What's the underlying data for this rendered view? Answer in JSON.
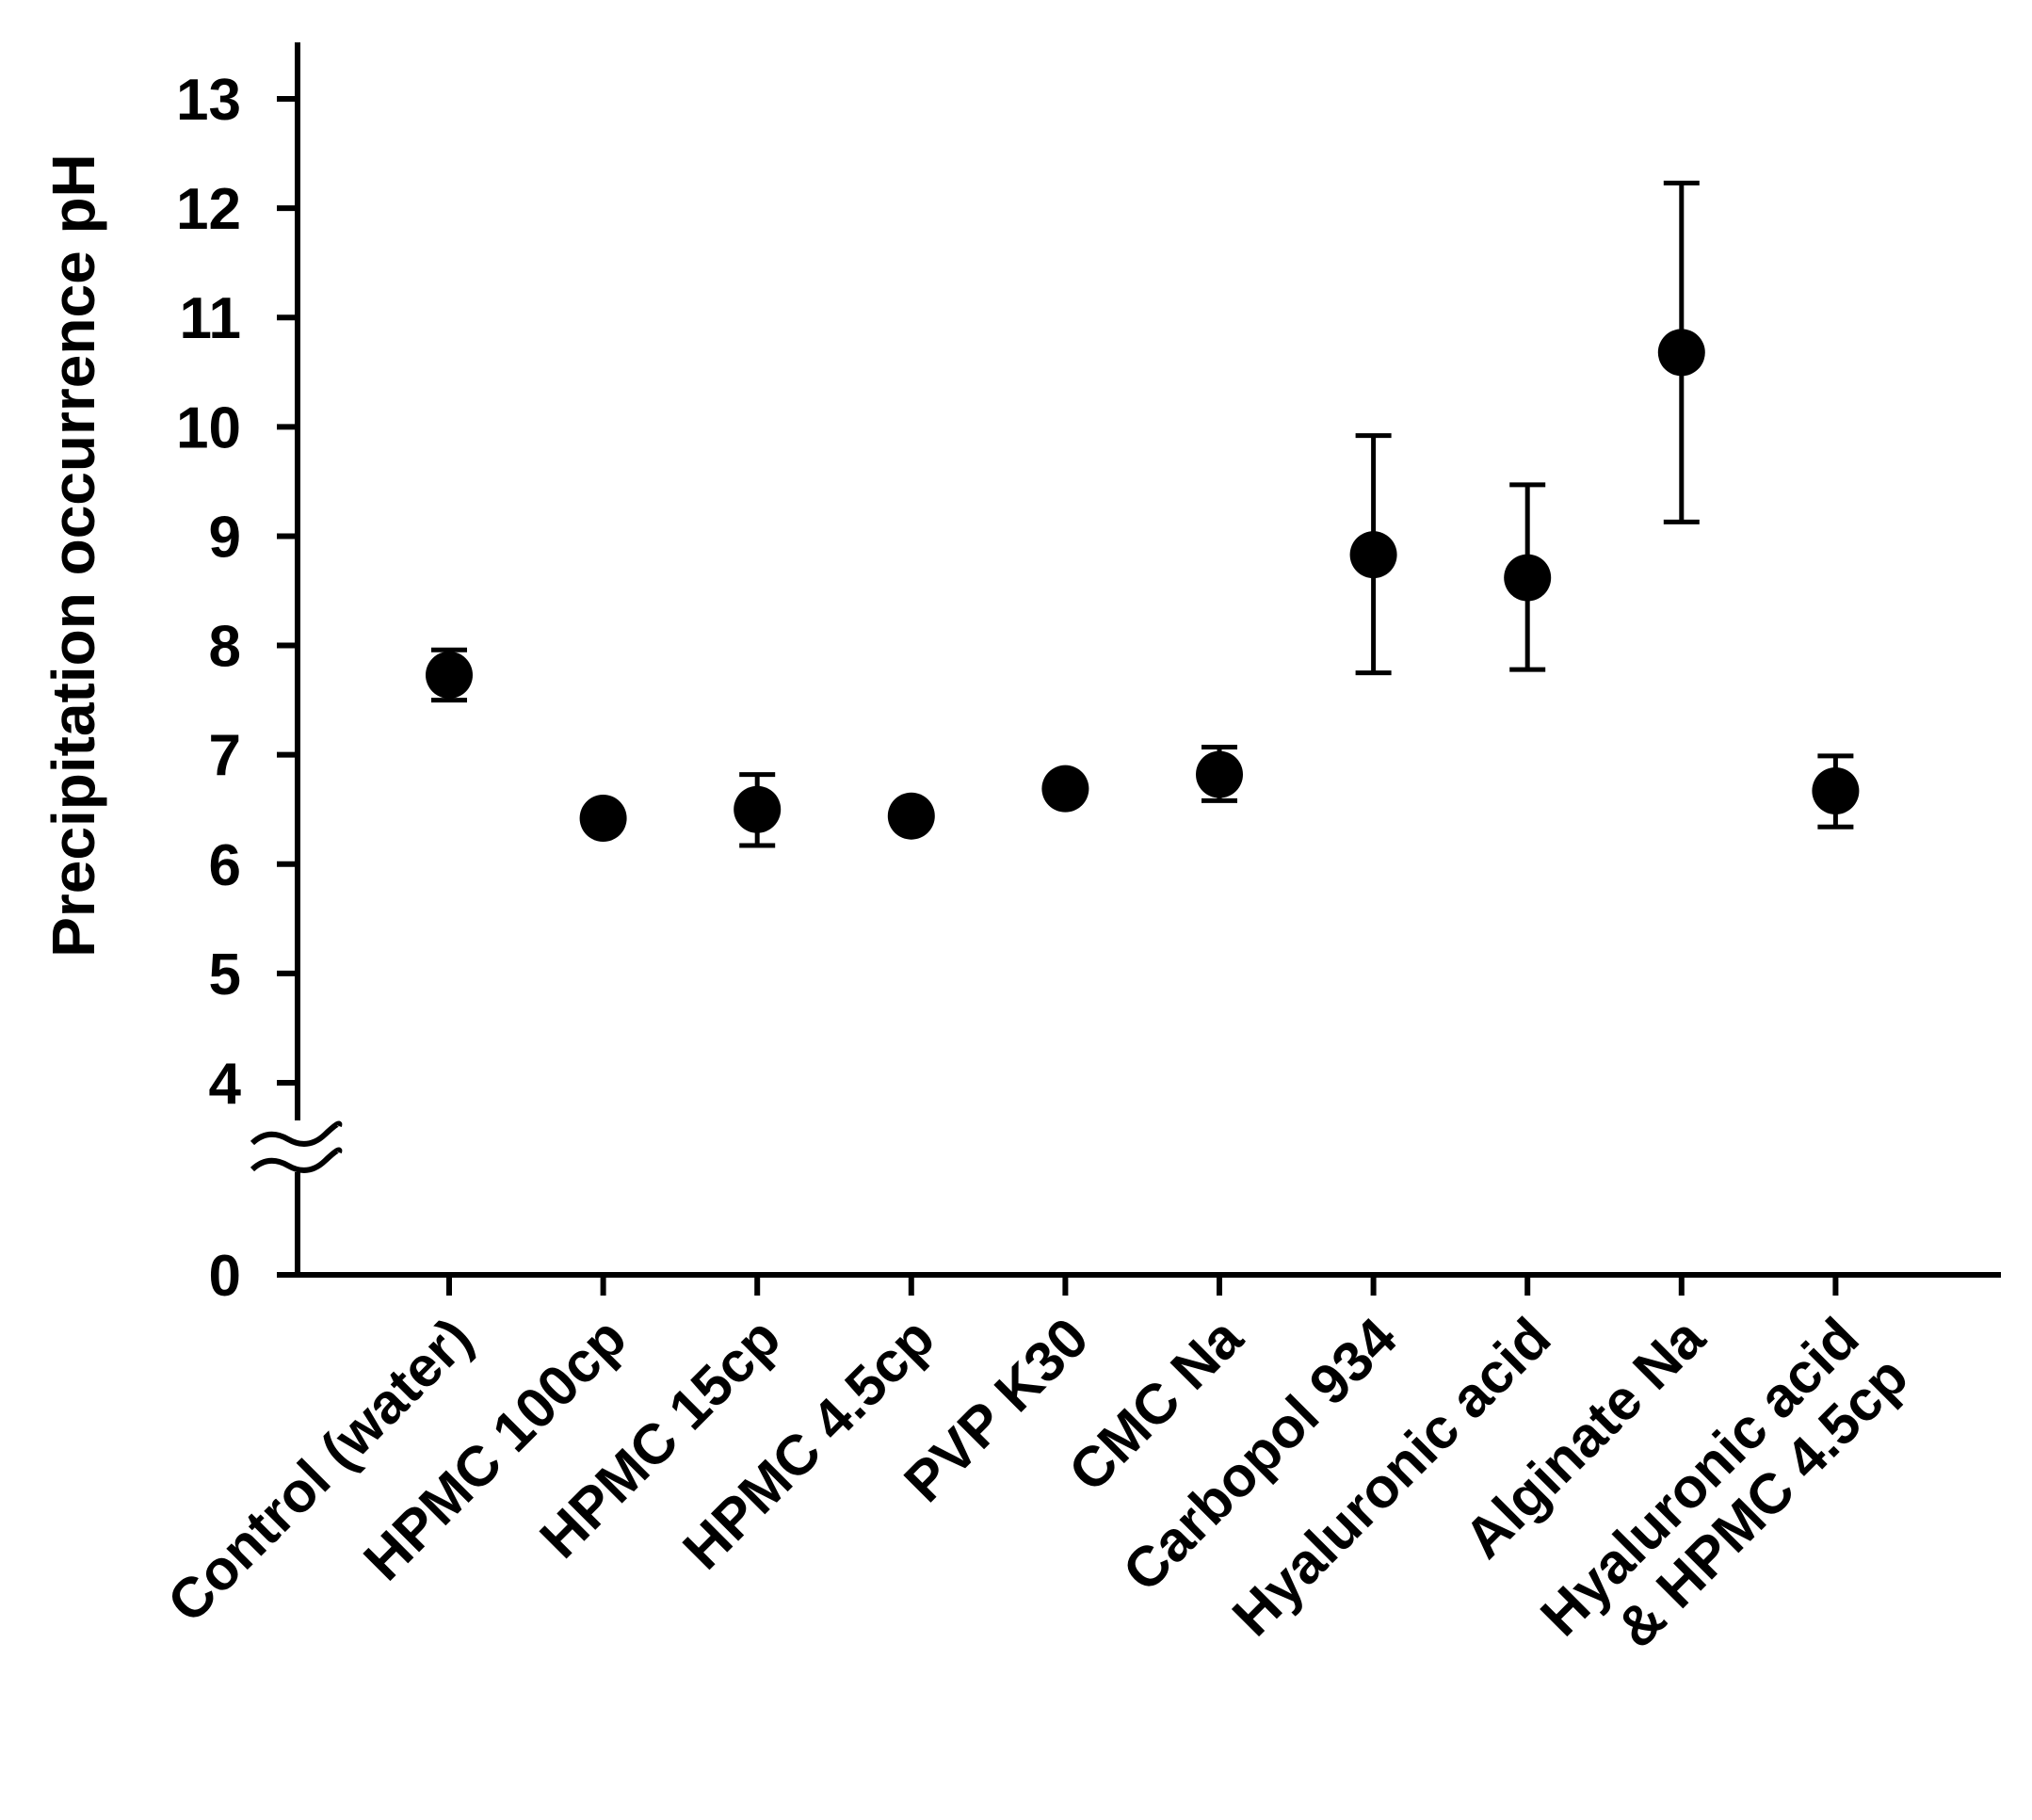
{
  "chart_data": {
    "type": "scatter",
    "title": "",
    "xlabel": "",
    "ylabel": "Precipitation occurrence pH",
    "ylim": [
      0,
      13
    ],
    "axis_break": true,
    "y_ticks": [
      {
        "value": 0,
        "label": "0"
      },
      {
        "value": 4,
        "label": "4"
      },
      {
        "value": 5,
        "label": "5"
      },
      {
        "value": 6,
        "label": "6"
      },
      {
        "value": 7,
        "label": "7"
      },
      {
        "value": 8,
        "label": "8"
      },
      {
        "value": 9,
        "label": "9"
      },
      {
        "value": 10,
        "label": "10"
      },
      {
        "value": 11,
        "label": "11"
      },
      {
        "value": 12,
        "label": "12"
      },
      {
        "value": 13,
        "label": "13"
      }
    ],
    "categories": [
      {
        "label": [
          "Control (water)"
        ],
        "value": 7.73,
        "err_low": 7.5,
        "err_high": 7.96
      },
      {
        "label": [
          "HPMC 100cp"
        ],
        "value": 6.42,
        "err_low": 6.36,
        "err_high": 6.48
      },
      {
        "label": [
          "HPMC 15cp"
        ],
        "value": 6.5,
        "err_low": 6.17,
        "err_high": 6.82
      },
      {
        "label": [
          "HPMC 4.5cp"
        ],
        "value": 6.44,
        "err_low": 6.38,
        "err_high": 6.5
      },
      {
        "label": [
          "PVP K30"
        ],
        "value": 6.69,
        "err_low": 6.6,
        "err_high": 6.78
      },
      {
        "label": [
          "CMC Na"
        ],
        "value": 6.82,
        "err_low": 6.58,
        "err_high": 7.07
      },
      {
        "label": [
          "Carbopol 934"
        ],
        "value": 8.83,
        "err_low": 7.75,
        "err_high": 9.92
      },
      {
        "label": [
          "Hyaluronic acid"
        ],
        "value": 8.62,
        "err_low": 7.78,
        "err_high": 9.47
      },
      {
        "label": [
          "Alginate Na"
        ],
        "value": 10.68,
        "err_low": 9.13,
        "err_high": 12.23
      },
      {
        "label": [
          "Hyaluronic acid",
          "& HPMC 4.5cp"
        ],
        "value": 6.67,
        "err_low": 6.34,
        "err_high": 6.99
      }
    ]
  }
}
